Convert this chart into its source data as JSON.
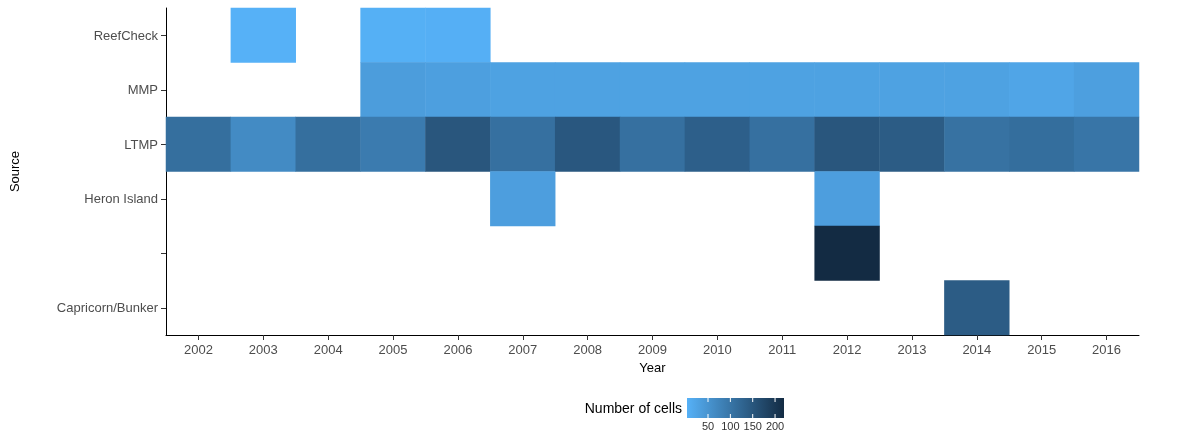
{
  "chart_data": {
    "type": "heatmap",
    "xlabel": "Year",
    "ylabel": "Source",
    "clabel": "Number of cells",
    "categories": [
      "2002",
      "2003",
      "2004",
      "2005",
      "2006",
      "2007",
      "2008",
      "2009",
      "2010",
      "2011",
      "2012",
      "2013",
      "2014",
      "2015",
      "2016"
    ],
    "y_categories": [
      "ReefCheck",
      "MMP",
      "LTMP",
      "Heron Island",
      null,
      "Capricorn/Bunker"
    ],
    "cells": [
      [
        null,
        3,
        null,
        5,
        6,
        null,
        null,
        null,
        null,
        null,
        null,
        null,
        null,
        null,
        null
      ],
      [
        null,
        null,
        null,
        35,
        32,
        28,
        28,
        28,
        28,
        28,
        28,
        28,
        28,
        22,
        32
      ],
      [
        110,
        65,
        110,
        90,
        150,
        108,
        148,
        108,
        135,
        108,
        150,
        140,
        105,
        112,
        100
      ],
      [
        null,
        null,
        null,
        null,
        null,
        33,
        null,
        null,
        null,
        null,
        33,
        null,
        null,
        null,
        null
      ],
      [
        null,
        null,
        null,
        null,
        null,
        null,
        null,
        null,
        null,
        null,
        220,
        null,
        null,
        null,
        null
      ],
      [
        null,
        null,
        null,
        null,
        null,
        null,
        null,
        null,
        null,
        null,
        null,
        null,
        140,
        null,
        null
      ]
    ],
    "clim": [
      3,
      220
    ],
    "cticks": [
      50,
      100,
      150,
      200
    ],
    "colors": [
      "#56b1f7",
      "#132b43"
    ],
    "grid": false
  }
}
